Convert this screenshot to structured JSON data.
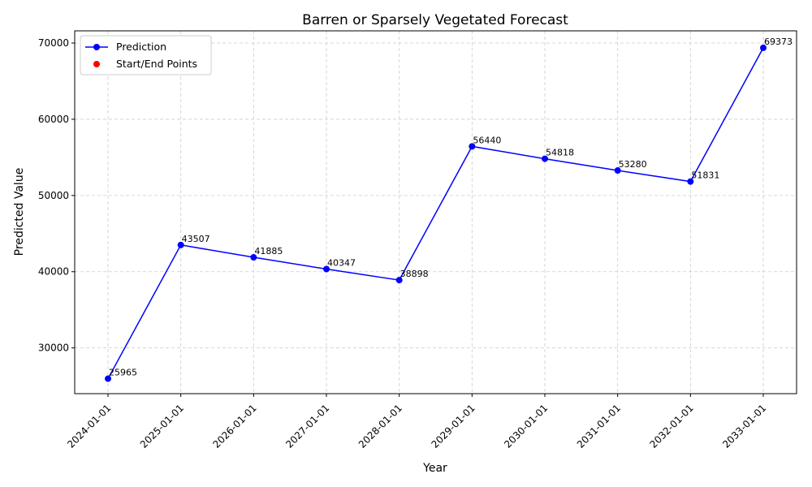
{
  "chart_data": {
    "type": "line",
    "title": "Barren or Sparsely Vegetated Forecast",
    "xlabel": "Year",
    "ylabel": "Predicted Value",
    "categories": [
      "2024-01-01",
      "2025-01-01",
      "2026-01-01",
      "2027-01-01",
      "2028-01-01",
      "2029-01-01",
      "2030-01-01",
      "2031-01-01",
      "2032-01-01",
      "2033-01-01"
    ],
    "series": [
      {
        "name": "Prediction",
        "color": "#0000ff",
        "marker": "circle",
        "values": [
          25965,
          43507,
          41885,
          40347,
          38898,
          56440,
          54818,
          53280,
          51831,
          69373
        ]
      }
    ],
    "legend": [
      {
        "label": "Prediction",
        "color": "#0000ff",
        "kind": "line-marker"
      },
      {
        "label": "Start/End Points",
        "color": "#ff0000",
        "kind": "marker"
      }
    ],
    "yticks": [
      30000,
      40000,
      50000,
      60000,
      70000
    ],
    "ylim": [
      24000,
      71600
    ],
    "grid": true,
    "legend_position": "top-left",
    "x_tick_rotation": 45
  }
}
